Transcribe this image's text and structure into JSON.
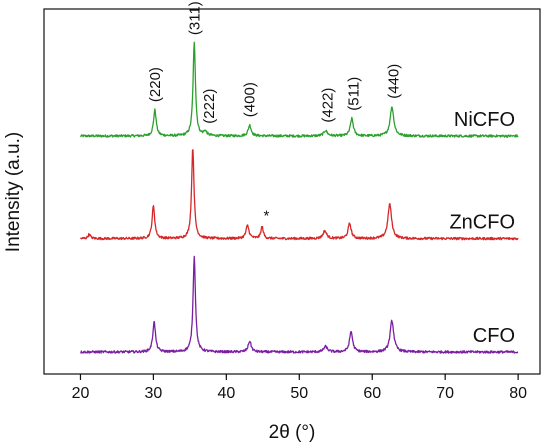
{
  "chart_data": {
    "type": "line",
    "xlabel": "2θ (°)",
    "ylabel": "Intensity (a.u.)",
    "xlim": [
      15,
      83
    ],
    "xticks": [
      20,
      30,
      40,
      50,
      60,
      70,
      80
    ],
    "grid": false,
    "series": [
      {
        "name": "NiCFO",
        "color": "#2ca02c",
        "baseline": 2.0,
        "peaks": [
          {
            "x": 30.2,
            "h": 0.24,
            "w": 0.22
          },
          {
            "x": 35.6,
            "h": 0.86,
            "w": 0.2
          },
          {
            "x": 37.1,
            "h": 0.04,
            "w": 0.25
          },
          {
            "x": 43.2,
            "h": 0.1,
            "w": 0.25
          },
          {
            "x": 53.6,
            "h": 0.05,
            "w": 0.3
          },
          {
            "x": 57.2,
            "h": 0.16,
            "w": 0.25
          },
          {
            "x": 62.7,
            "h": 0.27,
            "w": 0.3
          }
        ]
      },
      {
        "name": "ZnCFO",
        "color": "#d62728",
        "baseline": 1.05,
        "peaks": [
          {
            "x": 21.2,
            "h": 0.04,
            "w": 0.2
          },
          {
            "x": 30.0,
            "h": 0.3,
            "w": 0.22
          },
          {
            "x": 35.4,
            "h": 0.84,
            "w": 0.2
          },
          {
            "x": 42.9,
            "h": 0.12,
            "w": 0.25
          },
          {
            "x": 44.9,
            "h": 0.11,
            "w": 0.2
          },
          {
            "x": 53.5,
            "h": 0.07,
            "w": 0.3
          },
          {
            "x": 56.9,
            "h": 0.14,
            "w": 0.25
          },
          {
            "x": 62.4,
            "h": 0.32,
            "w": 0.3
          }
        ]
      },
      {
        "name": "CFO",
        "color": "#7b1fa2",
        "baseline": 0.0,
        "peaks": [
          {
            "x": 30.1,
            "h": 0.28,
            "w": 0.22
          },
          {
            "x": 35.6,
            "h": 0.88,
            "w": 0.2
          },
          {
            "x": 43.2,
            "h": 0.1,
            "w": 0.25
          },
          {
            "x": 53.6,
            "h": 0.05,
            "w": 0.3
          },
          {
            "x": 57.1,
            "h": 0.19,
            "w": 0.25
          },
          {
            "x": 62.7,
            "h": 0.29,
            "w": 0.3
          }
        ]
      }
    ],
    "annotations": [
      {
        "text": "(220)",
        "x": 30.2
      },
      {
        "text": "(311)",
        "x": 35.6
      },
      {
        "text": "(222)",
        "x": 37.6
      },
      {
        "text": "(400)",
        "x": 43.2
      },
      {
        "text": "(422)",
        "x": 53.9
      },
      {
        "text": "(511)",
        "x": 57.4
      },
      {
        "text": "(440)",
        "x": 62.9
      },
      {
        "text": "*",
        "x": 45.5
      }
    ]
  }
}
